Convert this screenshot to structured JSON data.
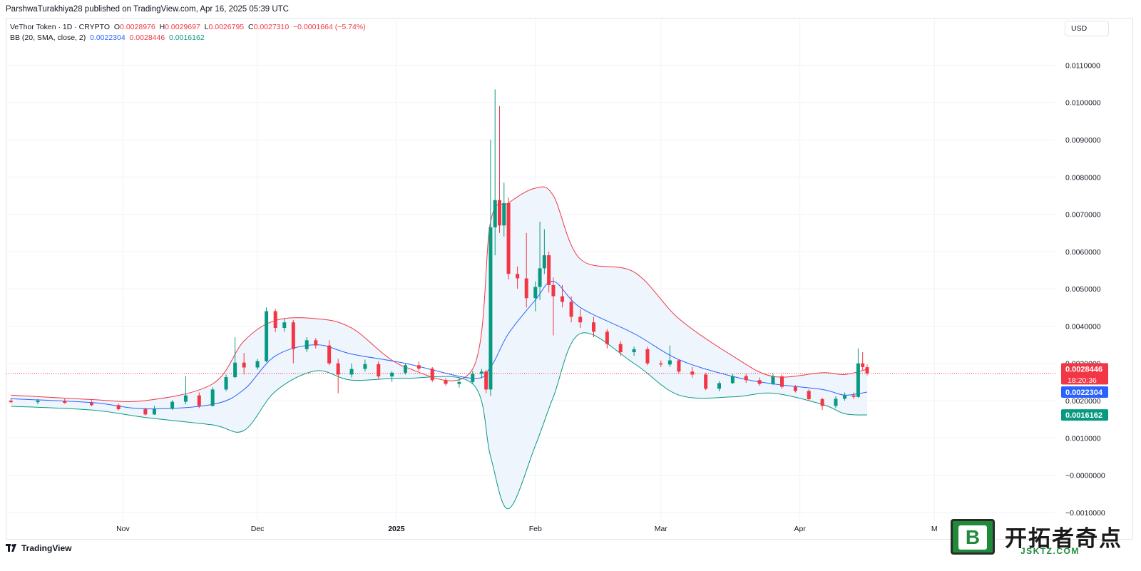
{
  "published": "ParshwaTurakhiya28 published on TradingView.com, Apr 16, 2025 05:39 UTC",
  "legend": {
    "title": "VeThor Token · 1D · CRYPTO",
    "o_label": "O",
    "o_value": "0.0028976",
    "h_label": "H",
    "h_value": "0.0029697",
    "l_label": "L",
    "l_value": "0.0026795",
    "c_label": "C",
    "c_value": "0.0027310",
    "change": "−0.0001664 (−5.74%)",
    "bb_label": "BB (20, SMA, close, 2)",
    "bb_basis": "0.0022304",
    "bb_upper": "0.0028446",
    "bb_lower": "0.0016162"
  },
  "currency": "USD",
  "price_tags": {
    "upper": "0.0028446",
    "countdown": "18:20:36",
    "basis": "0.0022304",
    "lower": "0.0016162"
  },
  "footer": {
    "logo_text": "TradingView"
  },
  "watermark": {
    "cn": "开拓者奇点",
    "url": "JSKTZ.COM",
    "badge_letter": "B"
  },
  "colors": {
    "up": "#089981",
    "down": "#f23645",
    "upper_band": "#f23645",
    "basis": "#2962ff",
    "lower_band": "#089981",
    "band_fill": "#eef5fc",
    "grid": "#f0f3fa",
    "last_price_line": "#f23645"
  },
  "chart_data": {
    "type": "candlestick",
    "title": "VeThor Token · 1D · CRYPTO",
    "xlabel": "",
    "ylabel": "",
    "x_ticks": [
      "Nov",
      "Dec",
      "2025",
      "Feb",
      "Mar",
      "Apr",
      "M"
    ],
    "y_ticks": [
      "0.0110000",
      "0.0100000",
      "0.0090000",
      "0.0080000",
      "0.0070000",
      "0.0060000",
      "0.0050000",
      "0.0040000",
      "0.0030000",
      "0.0020000",
      "0.0010000",
      "−0.0000000",
      "−0.0010000"
    ],
    "y_range": [
      -0.00125,
      0.01225
    ],
    "grid": true,
    "candles": [
      {
        "date": "2024-10-07",
        "o": 0.002,
        "h": 0.00207,
        "l": 0.00193,
        "c": 0.00196
      },
      {
        "date": "2024-10-13",
        "o": 0.00196,
        "h": 0.00204,
        "l": 0.0019,
        "c": 0.002
      },
      {
        "date": "2024-10-19",
        "o": 0.002,
        "h": 0.00205,
        "l": 0.00192,
        "c": 0.00194
      },
      {
        "date": "2024-10-25",
        "o": 0.00194,
        "h": 0.00201,
        "l": 0.00185,
        "c": 0.00188
      },
      {
        "date": "2024-10-31",
        "o": 0.00188,
        "h": 0.00192,
        "l": 0.00174,
        "c": 0.00177
      },
      {
        "date": "2024-11-06",
        "o": 0.00177,
        "h": 0.00181,
        "l": 0.0016,
        "c": 0.00163
      },
      {
        "date": "2024-11-08",
        "o": 0.00163,
        "h": 0.00186,
        "l": 0.00162,
        "c": 0.00178
      },
      {
        "date": "2024-11-12",
        "o": 0.00178,
        "h": 0.00201,
        "l": 0.00175,
        "c": 0.00197
      },
      {
        "date": "2024-11-15",
        "o": 0.00197,
        "h": 0.00266,
        "l": 0.0019,
        "c": 0.00214
      },
      {
        "date": "2024-11-18",
        "o": 0.00214,
        "h": 0.00222,
        "l": 0.0018,
        "c": 0.00186
      },
      {
        "date": "2024-11-21",
        "o": 0.00186,
        "h": 0.00236,
        "l": 0.00184,
        "c": 0.0023
      },
      {
        "date": "2024-11-24",
        "o": 0.0023,
        "h": 0.0027,
        "l": 0.00225,
        "c": 0.00263
      },
      {
        "date": "2024-11-26",
        "o": 0.00263,
        "h": 0.0037,
        "l": 0.0026,
        "c": 0.00302
      },
      {
        "date": "2024-11-28",
        "o": 0.00302,
        "h": 0.00328,
        "l": 0.0027,
        "c": 0.00289
      },
      {
        "date": "2024-12-01",
        "o": 0.00289,
        "h": 0.00312,
        "l": 0.00283,
        "c": 0.00306
      },
      {
        "date": "2024-12-03",
        "o": 0.00306,
        "h": 0.0045,
        "l": 0.00303,
        "c": 0.0044
      },
      {
        "date": "2024-12-05",
        "o": 0.0044,
        "h": 0.00446,
        "l": 0.00384,
        "c": 0.00395
      },
      {
        "date": "2024-12-07",
        "o": 0.00395,
        "h": 0.0042,
        "l": 0.00385,
        "c": 0.0041
      },
      {
        "date": "2024-12-09",
        "o": 0.0041,
        "h": 0.00416,
        "l": 0.003,
        "c": 0.00338
      },
      {
        "date": "2024-12-12",
        "o": 0.00338,
        "h": 0.0037,
        "l": 0.0033,
        "c": 0.00362
      },
      {
        "date": "2024-12-14",
        "o": 0.00362,
        "h": 0.00368,
        "l": 0.0034,
        "c": 0.00348
      },
      {
        "date": "2024-12-17",
        "o": 0.00348,
        "h": 0.00362,
        "l": 0.00295,
        "c": 0.003
      },
      {
        "date": "2024-12-19",
        "o": 0.003,
        "h": 0.00312,
        "l": 0.0022,
        "c": 0.0027
      },
      {
        "date": "2024-12-22",
        "o": 0.0027,
        "h": 0.003,
        "l": 0.00262,
        "c": 0.00285
      },
      {
        "date": "2024-12-25",
        "o": 0.00285,
        "h": 0.0031,
        "l": 0.00278,
        "c": 0.00298
      },
      {
        "date": "2024-12-28",
        "o": 0.00298,
        "h": 0.00306,
        "l": 0.00258,
        "c": 0.00265
      },
      {
        "date": "2024-12-31",
        "o": 0.00265,
        "h": 0.0028,
        "l": 0.0025,
        "c": 0.00275
      },
      {
        "date": "2025-01-03",
        "o": 0.00275,
        "h": 0.003,
        "l": 0.0027,
        "c": 0.00295
      },
      {
        "date": "2025-01-06",
        "o": 0.00295,
        "h": 0.00305,
        "l": 0.0028,
        "c": 0.00286
      },
      {
        "date": "2025-01-09",
        "o": 0.00286,
        "h": 0.0029,
        "l": 0.0025,
        "c": 0.00255
      },
      {
        "date": "2025-01-12",
        "o": 0.00255,
        "h": 0.0026,
        "l": 0.0024,
        "c": 0.00245
      },
      {
        "date": "2025-01-15",
        "o": 0.00245,
        "h": 0.00262,
        "l": 0.00235,
        "c": 0.0025
      },
      {
        "date": "2025-01-18",
        "o": 0.0025,
        "h": 0.0028,
        "l": 0.00245,
        "c": 0.00272
      },
      {
        "date": "2025-01-20",
        "o": 0.00272,
        "h": 0.00285,
        "l": 0.0026,
        "c": 0.00278
      },
      {
        "date": "2025-01-21",
        "o": 0.00278,
        "h": 0.00283,
        "l": 0.0022,
        "c": 0.0023
      },
      {
        "date": "2025-01-22",
        "o": 0.0023,
        "h": 0.009,
        "l": 0.00212,
        "c": 0.00665
      },
      {
        "date": "2025-01-23",
        "o": 0.00665,
        "h": 0.01035,
        "l": 0.0059,
        "c": 0.00738
      },
      {
        "date": "2025-01-24",
        "o": 0.00738,
        "h": 0.0099,
        "l": 0.0065,
        "c": 0.0067
      },
      {
        "date": "2025-01-25",
        "o": 0.0067,
        "h": 0.00785,
        "l": 0.0064,
        "c": 0.0073
      },
      {
        "date": "2025-01-26",
        "o": 0.0073,
        "h": 0.00745,
        "l": 0.00525,
        "c": 0.0054
      },
      {
        "date": "2025-01-28",
        "o": 0.0054,
        "h": 0.0056,
        "l": 0.005,
        "c": 0.00528
      },
      {
        "date": "2025-01-30",
        "o": 0.00528,
        "h": 0.0065,
        "l": 0.0045,
        "c": 0.00475
      },
      {
        "date": "2025-02-01",
        "o": 0.00475,
        "h": 0.0052,
        "l": 0.0044,
        "c": 0.00505
      },
      {
        "date": "2025-02-02",
        "o": 0.00505,
        "h": 0.0068,
        "l": 0.0047,
        "c": 0.00555
      },
      {
        "date": "2025-02-03",
        "o": 0.00555,
        "h": 0.0066,
        "l": 0.0054,
        "c": 0.0059
      },
      {
        "date": "2025-02-04",
        "o": 0.0059,
        "h": 0.006,
        "l": 0.0049,
        "c": 0.0051
      },
      {
        "date": "2025-02-05",
        "o": 0.0051,
        "h": 0.0053,
        "l": 0.00375,
        "c": 0.0048
      },
      {
        "date": "2025-02-07",
        "o": 0.0048,
        "h": 0.0051,
        "l": 0.0045,
        "c": 0.00465
      },
      {
        "date": "2025-02-09",
        "o": 0.00465,
        "h": 0.0048,
        "l": 0.0041,
        "c": 0.00425
      },
      {
        "date": "2025-02-11",
        "o": 0.00425,
        "h": 0.00445,
        "l": 0.00395,
        "c": 0.0041
      },
      {
        "date": "2025-02-14",
        "o": 0.0041,
        "h": 0.00425,
        "l": 0.0037,
        "c": 0.00385
      },
      {
        "date": "2025-02-17",
        "o": 0.00385,
        "h": 0.00392,
        "l": 0.0034,
        "c": 0.00352
      },
      {
        "date": "2025-02-20",
        "o": 0.00352,
        "h": 0.0036,
        "l": 0.0032,
        "c": 0.0033
      },
      {
        "date": "2025-02-23",
        "o": 0.0033,
        "h": 0.00345,
        "l": 0.0032,
        "c": 0.00338
      },
      {
        "date": "2025-02-26",
        "o": 0.00338,
        "h": 0.00345,
        "l": 0.00295,
        "c": 0.003
      },
      {
        "date": "2025-03-01",
        "o": 0.003,
        "h": 0.00308,
        "l": 0.0029,
        "c": 0.00297
      },
      {
        "date": "2025-03-03",
        "o": 0.00297,
        "h": 0.00348,
        "l": 0.0029,
        "c": 0.00308
      },
      {
        "date": "2025-03-05",
        "o": 0.00308,
        "h": 0.0031,
        "l": 0.00272,
        "c": 0.00278
      },
      {
        "date": "2025-03-08",
        "o": 0.00278,
        "h": 0.0029,
        "l": 0.00262,
        "c": 0.0027
      },
      {
        "date": "2025-03-11",
        "o": 0.0027,
        "h": 0.00275,
        "l": 0.00228,
        "c": 0.00232
      },
      {
        "date": "2025-03-14",
        "o": 0.00232,
        "h": 0.00252,
        "l": 0.00225,
        "c": 0.00247
      },
      {
        "date": "2025-03-17",
        "o": 0.00247,
        "h": 0.00272,
        "l": 0.00244,
        "c": 0.00266
      },
      {
        "date": "2025-03-20",
        "o": 0.00266,
        "h": 0.00272,
        "l": 0.00248,
        "c": 0.00255
      },
      {
        "date": "2025-03-23",
        "o": 0.00255,
        "h": 0.00262,
        "l": 0.0024,
        "c": 0.00245
      },
      {
        "date": "2025-03-26",
        "o": 0.00245,
        "h": 0.00272,
        "l": 0.00242,
        "c": 0.00265
      },
      {
        "date": "2025-03-28",
        "o": 0.00265,
        "h": 0.0027,
        "l": 0.00232,
        "c": 0.00237
      },
      {
        "date": "2025-03-31",
        "o": 0.00237,
        "h": 0.00242,
        "l": 0.00222,
        "c": 0.00226
      },
      {
        "date": "2025-04-03",
        "o": 0.00226,
        "h": 0.0023,
        "l": 0.002,
        "c": 0.00204
      },
      {
        "date": "2025-04-06",
        "o": 0.00204,
        "h": 0.00208,
        "l": 0.00175,
        "c": 0.00186
      },
      {
        "date": "2025-04-09",
        "o": 0.00186,
        "h": 0.00212,
        "l": 0.0018,
        "c": 0.00205
      },
      {
        "date": "2025-04-11",
        "o": 0.00205,
        "h": 0.00222,
        "l": 0.002,
        "c": 0.00214
      },
      {
        "date": "2025-04-13",
        "o": 0.00214,
        "h": 0.00222,
        "l": 0.00205,
        "c": 0.0021
      },
      {
        "date": "2025-04-14",
        "o": 0.0021,
        "h": 0.0034,
        "l": 0.00208,
        "c": 0.003
      },
      {
        "date": "2025-04-15",
        "o": 0.003,
        "h": 0.0033,
        "l": 0.0028,
        "c": 0.0029
      },
      {
        "date": "2025-04-16",
        "o": 0.0028976,
        "h": 0.0029697,
        "l": 0.0026795,
        "c": 0.002731
      }
    ],
    "bollinger": {
      "dates": [
        "2024-10-07",
        "2024-10-25",
        "2024-11-06",
        "2024-11-21",
        "2024-11-28",
        "2024-12-05",
        "2024-12-14",
        "2024-12-22",
        "2025-01-03",
        "2025-01-18",
        "2025-01-22",
        "2025-01-26",
        "2025-02-01",
        "2025-02-05",
        "2025-02-11",
        "2025-02-23",
        "2025-03-05",
        "2025-03-17",
        "2025-03-26",
        "2025-04-06",
        "2025-04-11",
        "2025-04-16"
      ],
      "upper": [
        0.00215,
        0.00203,
        0.002,
        0.00245,
        0.0036,
        0.00415,
        0.0042,
        0.00395,
        0.0029,
        0.00285,
        0.0068,
        0.0073,
        0.0077,
        0.0075,
        0.0058,
        0.00545,
        0.0042,
        0.0032,
        0.00265,
        0.00275,
        0.0027,
        0.0028446
      ],
      "basis": [
        0.00205,
        0.00195,
        0.00178,
        0.0019,
        0.0023,
        0.0032,
        0.0035,
        0.00325,
        0.003,
        0.0026,
        0.0029,
        0.0038,
        0.0047,
        0.0052,
        0.0045,
        0.0038,
        0.0031,
        0.00265,
        0.00245,
        0.0023,
        0.00215,
        0.0022304
      ],
      "lower": [
        0.00185,
        0.00175,
        0.00155,
        0.00135,
        0.0012,
        0.00225,
        0.0028,
        0.00255,
        0.0026,
        0.00245,
        0.0005,
        -0.0009,
        0.0008,
        0.0021,
        0.0038,
        0.003,
        0.00215,
        0.0021,
        0.0022,
        0.0019,
        0.00165,
        0.0016162
      ]
    },
    "last_price": 0.002731,
    "x_date_range": [
      "2024-10-06",
      "2025-05-28"
    ]
  }
}
